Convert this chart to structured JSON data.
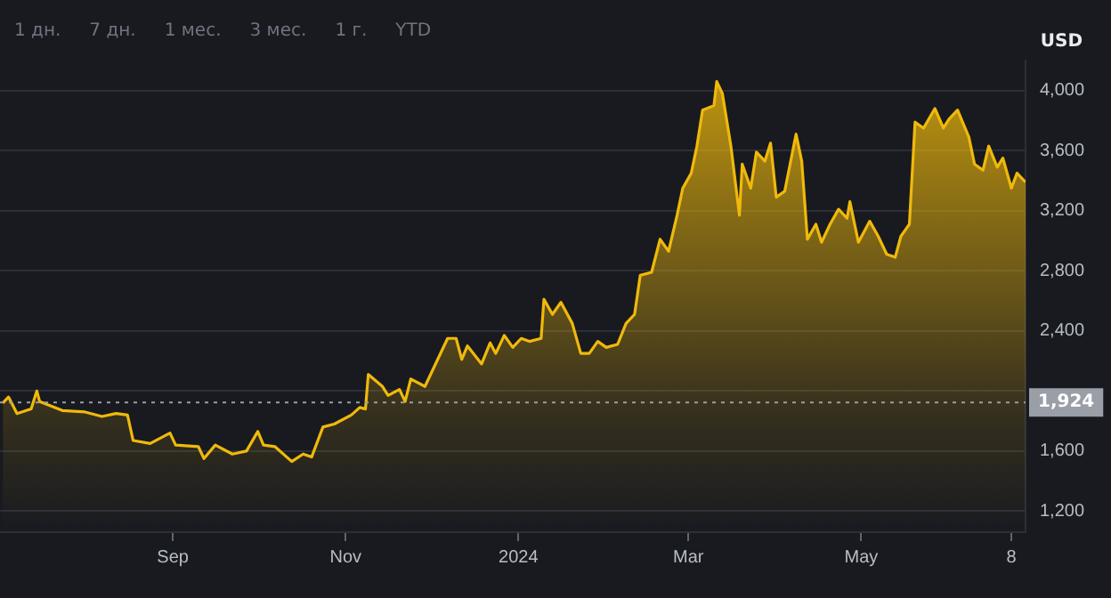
{
  "chart_data": {
    "type": "area",
    "ylabel": "USD",
    "annotations": [
      "1 дн.",
      "7 дн.",
      "1 мес.",
      "3 мес.",
      "1 г.",
      "YTD"
    ],
    "xlim": [
      "2023-07-02",
      "2024-06-28"
    ],
    "xticks": [
      {
        "value": "2023-09-01",
        "label": "Sep"
      },
      {
        "value": "2023-11-01",
        "label": "Nov"
      },
      {
        "value": "2024-01-01",
        "label": "2024"
      },
      {
        "value": "2024-03-01",
        "label": "Mar"
      },
      {
        "value": "2024-05-01",
        "label": "May"
      },
      {
        "value": "2024-06-23",
        "label": "8"
      }
    ],
    "ylim": [
      1060,
      4200
    ],
    "yticks": [
      {
        "value": 1200,
        "label": "1,200"
      },
      {
        "value": 1600,
        "label": "1,600"
      },
      {
        "value": 2000,
        "label": null
      },
      {
        "value": 2400,
        "label": "2,400"
      },
      {
        "value": 2800,
        "label": "2,800"
      },
      {
        "value": 3200,
        "label": "3,200"
      },
      {
        "value": 3600,
        "label": "3,600"
      },
      {
        "value": 4000,
        "label": "4,000"
      }
    ],
    "grid": "y",
    "marker": "none",
    "line_style": "solid",
    "ref_lines": [
      {
        "axis": "y",
        "value": 1924,
        "label": "1,924",
        "color": "#9a9ea6",
        "line_style": "dotted"
      }
    ],
    "series": [
      {
        "color": "#f0b90b",
        "x": [
          "2023-07-03",
          "2023-07-05",
          "2023-07-08",
          "2023-07-13",
          "2023-07-15",
          "2023-07-16",
          "2023-07-24",
          "2023-08-01",
          "2023-08-07",
          "2023-08-12",
          "2023-08-16",
          "2023-08-18",
          "2023-08-24",
          "2023-08-31",
          "2023-09-02",
          "2023-09-10",
          "2023-09-12",
          "2023-09-16",
          "2023-09-22",
          "2023-09-27",
          "2023-10-01",
          "2023-10-03",
          "2023-10-07",
          "2023-10-13",
          "2023-10-17",
          "2023-10-20",
          "2023-10-24",
          "2023-10-28",
          "2023-11-03",
          "2023-11-06",
          "2023-11-08",
          "2023-11-09",
          "2023-11-14",
          "2023-11-16",
          "2023-11-20",
          "2023-11-22",
          "2023-11-24",
          "2023-11-29",
          "2023-12-03",
          "2023-12-07",
          "2023-12-10",
          "2023-12-12",
          "2023-12-14",
          "2023-12-19",
          "2023-12-22",
          "2023-12-24",
          "2023-12-27",
          "2023-12-30",
          "2024-01-02",
          "2024-01-05",
          "2024-01-09",
          "2024-01-10",
          "2024-01-13",
          "2024-01-16",
          "2024-01-20",
          "2024-01-23",
          "2024-01-26",
          "2024-01-29",
          "2024-02-01",
          "2024-02-05",
          "2024-02-08",
          "2024-02-11",
          "2024-02-13",
          "2024-02-17",
          "2024-02-20",
          "2024-02-23",
          "2024-02-26",
          "2024-02-28",
          "2024-03-02",
          "2024-03-04",
          "2024-03-06",
          "2024-03-10",
          "2024-03-11",
          "2024-03-13",
          "2024-03-16",
          "2024-03-19",
          "2024-03-20",
          "2024-03-23",
          "2024-03-25",
          "2024-03-28",
          "2024-03-30",
          "2024-04-01",
          "2024-04-04",
          "2024-04-08",
          "2024-04-10",
          "2024-04-12",
          "2024-04-15",
          "2024-04-17",
          "2024-04-20",
          "2024-04-23",
          "2024-04-26",
          "2024-04-27",
          "2024-04-30",
          "2024-05-04",
          "2024-05-07",
          "2024-05-10",
          "2024-05-13",
          "2024-05-15",
          "2024-05-18",
          "2024-05-20",
          "2024-05-23",
          "2024-05-27",
          "2024-05-30",
          "2024-06-01",
          "2024-06-04",
          "2024-06-08",
          "2024-06-10",
          "2024-06-13",
          "2024-06-15",
          "2024-06-18",
          "2024-06-20",
          "2024-06-23",
          "2024-06-25",
          "2024-06-28"
        ],
        "values": [
          1920,
          1960,
          1850,
          1880,
          2000,
          1930,
          1870,
          1860,
          1830,
          1850,
          1840,
          1670,
          1650,
          1720,
          1640,
          1630,
          1550,
          1640,
          1580,
          1600,
          1730,
          1640,
          1630,
          1530,
          1580,
          1560,
          1760,
          1780,
          1840,
          1890,
          1880,
          2110,
          2030,
          1970,
          2010,
          1930,
          2080,
          2030,
          2190,
          2350,
          2350,
          2210,
          2300,
          2180,
          2320,
          2250,
          2370,
          2290,
          2350,
          2330,
          2350,
          2610,
          2510,
          2590,
          2450,
          2250,
          2250,
          2330,
          2290,
          2310,
          2450,
          2510,
          2770,
          2790,
          3010,
          2930,
          3170,
          3350,
          3450,
          3630,
          3870,
          3900,
          4060,
          3980,
          3630,
          3170,
          3510,
          3350,
          3590,
          3530,
          3650,
          3290,
          3330,
          3710,
          3530,
          3010,
          3110,
          2990,
          3110,
          3210,
          3150,
          3260,
          2990,
          3130,
          3030,
          2910,
          2890,
          3030,
          3110,
          3790,
          3750,
          3880,
          3750,
          3810,
          3870,
          3690,
          3510,
          3470,
          3630,
          3490,
          3550,
          3350,
          3450,
          3390
        ]
      }
    ]
  }
}
